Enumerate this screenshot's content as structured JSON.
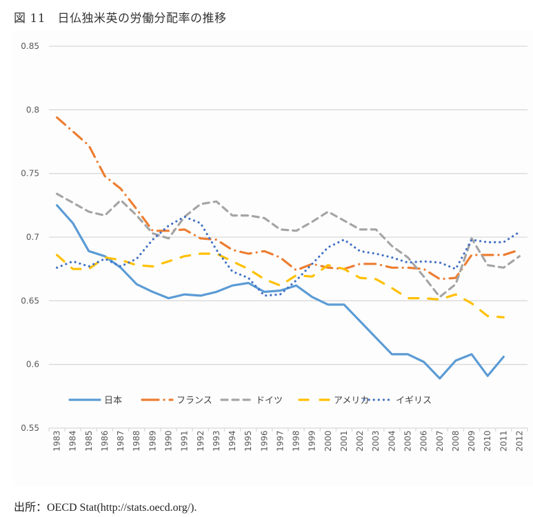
{
  "figure": {
    "title": "図 11　日仏独米英の労働分配率の推移",
    "source": "出所：OECD Stat(http://stats.oecd.org/)."
  },
  "chart_data": {
    "type": "line",
    "title": "",
    "xlabel": "",
    "ylabel": "",
    "ylim": [
      0.55,
      0.85
    ],
    "yticks": [
      "0.55",
      "0.6",
      "0.65",
      "0.7",
      "0.75",
      "0.8",
      "0.85"
    ],
    "ytick_values": [
      0.55,
      0.6,
      0.65,
      0.7,
      0.75,
      0.8,
      0.85
    ],
    "grid": true,
    "legend_position": "bottom-inside",
    "categories": [
      "1983",
      "1984",
      "1985",
      "1986",
      "1987",
      "1988",
      "1989",
      "1990",
      "1991",
      "1992",
      "1993",
      "1994",
      "1995",
      "1996",
      "1997",
      "1998",
      "1999",
      "2000",
      "2001",
      "2002",
      "2003",
      "2004",
      "2005",
      "2006",
      "2007",
      "2008",
      "2009",
      "2010",
      "2011",
      "2012"
    ],
    "series": [
      {
        "name": "日本",
        "color": "#5b9bd5",
        "style": "solid",
        "values": [
          0.725,
          0.711,
          0.689,
          0.685,
          0.676,
          0.663,
          0.657,
          0.652,
          0.655,
          0.654,
          0.657,
          0.662,
          0.664,
          0.657,
          0.658,
          0.662,
          0.653,
          0.647,
          0.647,
          0.634,
          0.621,
          0.608,
          0.608,
          0.602,
          0.589,
          0.603,
          0.608,
          0.591,
          0.606,
          null
        ]
      },
      {
        "name": "フランス",
        "color": "#ed7d31",
        "style": "dashdot",
        "values": [
          0.794,
          0.783,
          0.772,
          0.748,
          0.738,
          0.722,
          0.705,
          0.705,
          0.706,
          0.699,
          0.698,
          0.69,
          0.687,
          0.689,
          0.684,
          0.674,
          0.679,
          0.676,
          0.675,
          0.679,
          0.679,
          0.676,
          0.676,
          0.675,
          0.667,
          0.668,
          0.686,
          0.686,
          0.686,
          0.69
        ]
      },
      {
        "name": "ドイツ",
        "color": "#a5a5a5",
        "style": "dash",
        "values": [
          0.734,
          0.727,
          0.72,
          0.717,
          0.729,
          0.717,
          0.703,
          0.699,
          0.716,
          0.726,
          0.728,
          0.717,
          0.717,
          0.715,
          0.706,
          0.705,
          0.712,
          0.72,
          0.713,
          0.706,
          0.706,
          0.693,
          0.684,
          0.669,
          0.653,
          0.663,
          0.699,
          0.678,
          0.676,
          0.685
        ]
      },
      {
        "name": "アメリカ",
        "color": "#ffc000",
        "style": "longdash",
        "values": [
          0.686,
          0.675,
          0.675,
          0.684,
          0.682,
          0.678,
          0.677,
          0.681,
          0.685,
          0.687,
          0.687,
          0.681,
          0.675,
          0.667,
          0.662,
          0.67,
          0.669,
          0.678,
          0.675,
          0.668,
          0.667,
          0.66,
          0.652,
          0.652,
          0.651,
          0.655,
          0.648,
          0.638,
          0.637,
          null
        ]
      },
      {
        "name": "イギリス",
        "color": "#4472c4",
        "style": "dot",
        "values": [
          0.676,
          0.681,
          0.677,
          0.683,
          0.677,
          0.683,
          0.698,
          0.709,
          0.716,
          0.711,
          0.69,
          0.673,
          0.668,
          0.654,
          0.655,
          0.666,
          0.679,
          0.692,
          0.698,
          0.689,
          0.687,
          0.684,
          0.68,
          0.681,
          0.68,
          0.675,
          0.698,
          0.696,
          0.696,
          0.704
        ]
      }
    ],
    "gridline_color": "#d9d9d9"
  }
}
